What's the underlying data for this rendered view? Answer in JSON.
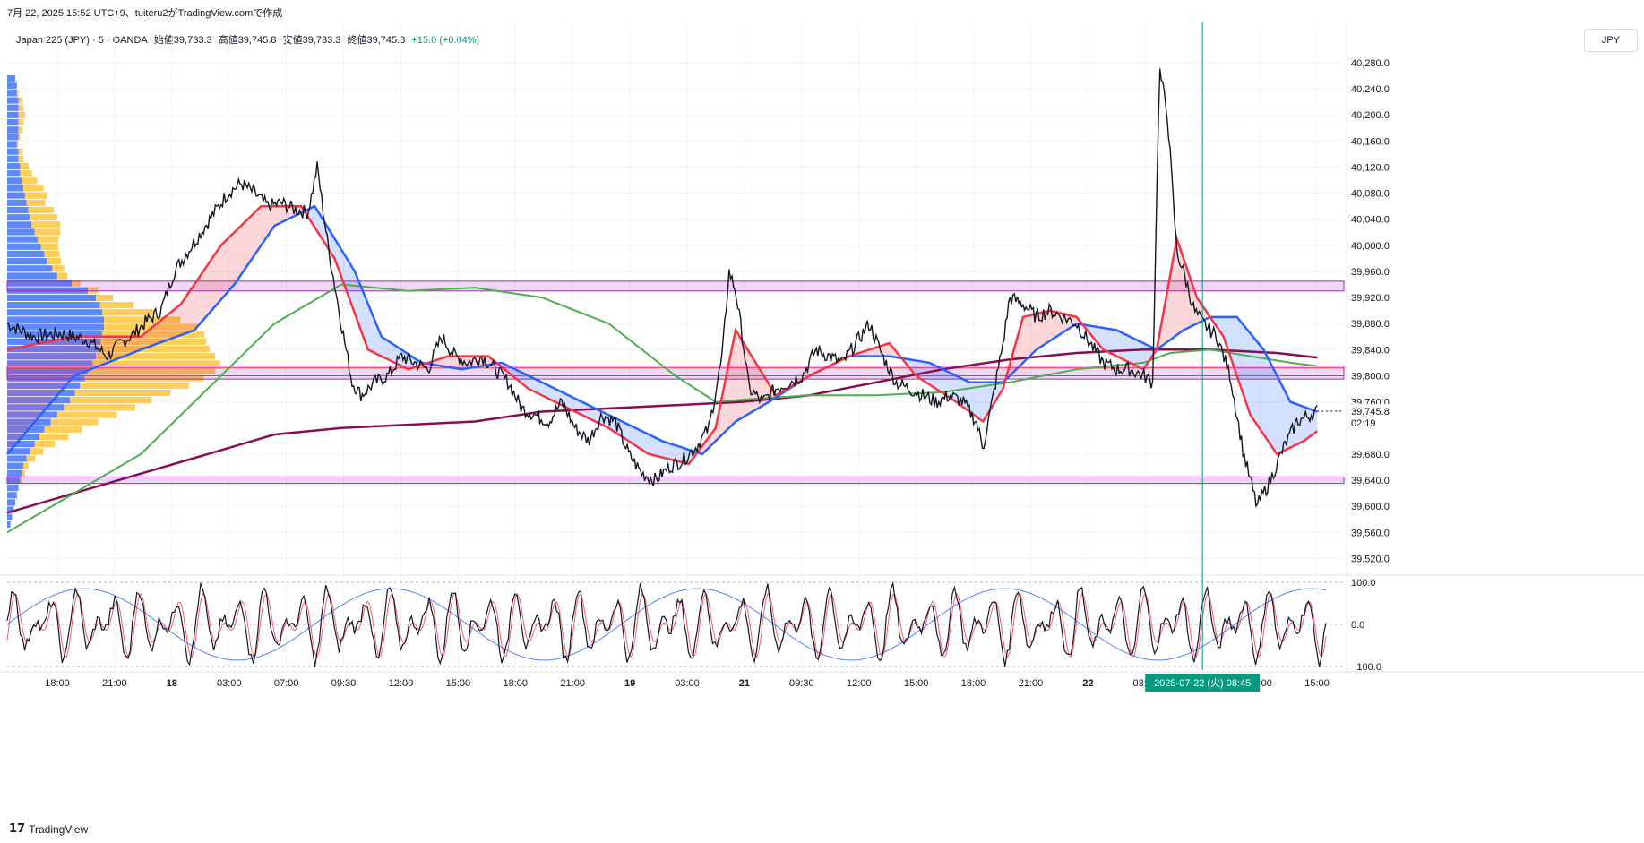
{
  "top_caption": "7月 22, 2025 15:52 UTC+9、tuiteru2がTradingView.comで作成",
  "legend": {
    "symbol": "Japan 225 (JPY) · 5 · OANDA",
    "open": "始値39,733.3",
    "high": "高値39,745.8",
    "low": "安値39,733.3",
    "close": "終値39,745.8",
    "change": "+15.0 (+0.04%)"
  },
  "currency": "JPY",
  "brand": "TradingView",
  "colors": {
    "price": "#131722",
    "ema_fast": "#f23645",
    "ema_mid": "#2962ff",
    "sma_slow": "#4caf50",
    "sma_long": "#880e4f",
    "zone": "#9c27b0",
    "level_red": "#f23645",
    "crosshair": "#089981",
    "vp_up": "#2962ff",
    "vp_down": "#ffb300",
    "osc_k": "#131722",
    "osc_d": "#f23645",
    "osc_slow": "#2962ff"
  },
  "chart_data": [
    {
      "type": "line",
      "series_name": "Japan 225 (JPY) 5m",
      "x": [
        "18:00",
        "21:00",
        "18",
        "03:00",
        "07:00",
        "09:30",
        "12:00",
        "15:00",
        "18:00",
        "21:00",
        "19",
        "03:00",
        "21",
        "09:30",
        "12:00",
        "15:00",
        "18:00",
        "21:00",
        "22",
        "03:00",
        "08:45",
        "12:00",
        "15:00"
      ],
      "ylim": [
        39500,
        40310
      ],
      "y_ticks": [
        "40,280.0",
        "40,240.0",
        "40,200.0",
        "40,160.0",
        "40,120.0",
        "40,080.0",
        "40,040.0",
        "40,000.0",
        "39,960.0",
        "39,920.0",
        "39,880.0",
        "39,840.0",
        "39,800.0",
        "39,760.0",
        "39,680.0",
        "39,640.0",
        "39,600.0",
        "39,560.0",
        "39,520.0"
      ],
      "last_price": "39,745.8",
      "countdown": "02:19",
      "crosshair_label": "2025-07-22 (火)  08:45",
      "price_path": [
        [
          0,
          39880
        ],
        [
          0.01,
          39870
        ],
        [
          0.02,
          39860
        ],
        [
          0.04,
          39865
        ],
        [
          0.06,
          39855
        ],
        [
          0.075,
          39830
        ],
        [
          0.085,
          39850
        ],
        [
          0.095,
          39865
        ],
        [
          0.105,
          39885
        ],
        [
          0.115,
          39900
        ],
        [
          0.125,
          39960
        ],
        [
          0.135,
          39990
        ],
        [
          0.145,
          40020
        ],
        [
          0.155,
          40050
        ],
        [
          0.165,
          40080
        ],
        [
          0.175,
          40095
        ],
        [
          0.185,
          40080
        ],
        [
          0.195,
          40060
        ],
        [
          0.205,
          40065
        ],
        [
          0.215,
          40055
        ],
        [
          0.225,
          40050
        ],
        [
          0.232,
          40120
        ],
        [
          0.24,
          40000
        ],
        [
          0.25,
          39880
        ],
        [
          0.258,
          39790
        ],
        [
          0.265,
          39770
        ],
        [
          0.275,
          39790
        ],
        [
          0.285,
          39800
        ],
        [
          0.295,
          39830
        ],
        [
          0.305,
          39820
        ],
        [
          0.315,
          39810
        ],
        [
          0.325,
          39860
        ],
        [
          0.335,
          39830
        ],
        [
          0.345,
          39820
        ],
        [
          0.355,
          39830
        ],
        [
          0.365,
          39810
        ],
        [
          0.375,
          39790
        ],
        [
          0.385,
          39750
        ],
        [
          0.395,
          39740
        ],
        [
          0.405,
          39730
        ],
        [
          0.415,
          39760
        ],
        [
          0.425,
          39720
        ],
        [
          0.435,
          39700
        ],
        [
          0.445,
          39740
        ],
        [
          0.455,
          39730
        ],
        [
          0.465,
          39680
        ],
        [
          0.475,
          39650
        ],
        [
          0.485,
          39640
        ],
        [
          0.495,
          39660
        ],
        [
          0.505,
          39670
        ],
        [
          0.515,
          39690
        ],
        [
          0.525,
          39720
        ],
        [
          0.535,
          39830
        ],
        [
          0.54,
          39960
        ],
        [
          0.545,
          39930
        ],
        [
          0.55,
          39860
        ],
        [
          0.555,
          39780
        ],
        [
          0.565,
          39760
        ],
        [
          0.575,
          39780
        ],
        [
          0.585,
          39790
        ],
        [
          0.595,
          39800
        ],
        [
          0.605,
          39840
        ],
        [
          0.615,
          39830
        ],
        [
          0.625,
          39820
        ],
        [
          0.635,
          39850
        ],
        [
          0.645,
          39880
        ],
        [
          0.655,
          39830
        ],
        [
          0.665,
          39790
        ],
        [
          0.675,
          39780
        ],
        [
          0.685,
          39770
        ],
        [
          0.695,
          39760
        ],
        [
          0.705,
          39770
        ],
        [
          0.715,
          39760
        ],
        [
          0.725,
          39730
        ],
        [
          0.73,
          39690
        ],
        [
          0.735,
          39740
        ],
        [
          0.745,
          39850
        ],
        [
          0.75,
          39920
        ],
        [
          0.76,
          39910
        ],
        [
          0.77,
          39890
        ],
        [
          0.78,
          39900
        ],
        [
          0.79,
          39890
        ],
        [
          0.8,
          39880
        ],
        [
          0.81,
          39850
        ],
        [
          0.82,
          39820
        ],
        [
          0.83,
          39810
        ],
        [
          0.84,
          39810
        ],
        [
          0.85,
          39800
        ],
        [
          0.857,
          39790
        ],
        [
          0.862,
          40270
        ],
        [
          0.868,
          40200
        ],
        [
          0.875,
          39990
        ],
        [
          0.88,
          39960
        ],
        [
          0.888,
          39900
        ],
        [
          0.895,
          39880
        ],
        [
          0.905,
          39860
        ],
        [
          0.915,
          39800
        ],
        [
          0.925,
          39680
        ],
        [
          0.935,
          39600
        ],
        [
          0.945,
          39640
        ],
        [
          0.955,
          39690
        ],
        [
          0.965,
          39730
        ],
        [
          0.975,
          39740
        ],
        [
          0.98,
          39745.8
        ]
      ],
      "ema_fast_path": [
        [
          0,
          39840
        ],
        [
          0.05,
          39860
        ],
        [
          0.1,
          39860
        ],
        [
          0.13,
          39910
        ],
        [
          0.16,
          40000
        ],
        [
          0.19,
          40060
        ],
        [
          0.22,
          40060
        ],
        [
          0.245,
          39980
        ],
        [
          0.27,
          39840
        ],
        [
          0.3,
          39810
        ],
        [
          0.33,
          39830
        ],
        [
          0.36,
          39830
        ],
        [
          0.39,
          39780
        ],
        [
          0.42,
          39750
        ],
        [
          0.45,
          39720
        ],
        [
          0.48,
          39680
        ],
        [
          0.51,
          39665
        ],
        [
          0.53,
          39720
        ],
        [
          0.545,
          39870
        ],
        [
          0.56,
          39820
        ],
        [
          0.575,
          39770
        ],
        [
          0.6,
          39800
        ],
        [
          0.63,
          39830
        ],
        [
          0.66,
          39850
        ],
        [
          0.68,
          39800
        ],
        [
          0.71,
          39760
        ],
        [
          0.73,
          39730
        ],
        [
          0.745,
          39780
        ],
        [
          0.76,
          39890
        ],
        [
          0.78,
          39900
        ],
        [
          0.8,
          39890
        ],
        [
          0.82,
          39840
        ],
        [
          0.85,
          39810
        ],
        [
          0.86,
          39840
        ],
        [
          0.875,
          40010
        ],
        [
          0.89,
          39920
        ],
        [
          0.91,
          39860
        ],
        [
          0.93,
          39740
        ],
        [
          0.95,
          39680
        ],
        [
          0.97,
          39700
        ],
        [
          0.98,
          39715
        ]
      ],
      "ema_mid_path": [
        [
          0,
          39680
        ],
        [
          0.05,
          39800
        ],
        [
          0.1,
          39840
        ],
        [
          0.14,
          39870
        ],
        [
          0.17,
          39940
        ],
        [
          0.2,
          40030
        ],
        [
          0.23,
          40060
        ],
        [
          0.26,
          39960
        ],
        [
          0.28,
          39860
        ],
        [
          0.31,
          39820
        ],
        [
          0.34,
          39810
        ],
        [
          0.37,
          39820
        ],
        [
          0.4,
          39790
        ],
        [
          0.43,
          39760
        ],
        [
          0.46,
          39730
        ],
        [
          0.49,
          39700
        ],
        [
          0.52,
          39680
        ],
        [
          0.545,
          39730
        ],
        [
          0.57,
          39760
        ],
        [
          0.6,
          39800
        ],
        [
          0.63,
          39830
        ],
        [
          0.66,
          39830
        ],
        [
          0.69,
          39820
        ],
        [
          0.72,
          39790
        ],
        [
          0.745,
          39790
        ],
        [
          0.77,
          39840
        ],
        [
          0.8,
          39880
        ],
        [
          0.83,
          39870
        ],
        [
          0.86,
          39840
        ],
        [
          0.88,
          39870
        ],
        [
          0.9,
          39890
        ],
        [
          0.92,
          39890
        ],
        [
          0.94,
          39840
        ],
        [
          0.96,
          39760
        ],
        [
          0.98,
          39745
        ]
      ],
      "sma_slow_path": [
        [
          0,
          39560
        ],
        [
          0.05,
          39620
        ],
        [
          0.1,
          39680
        ],
        [
          0.15,
          39780
        ],
        [
          0.2,
          39880
        ],
        [
          0.25,
          39940
        ],
        [
          0.3,
          39930
        ],
        [
          0.35,
          39935
        ],
        [
          0.4,
          39920
        ],
        [
          0.45,
          39880
        ],
        [
          0.5,
          39800
        ],
        [
          0.53,
          39760
        ],
        [
          0.56,
          39765
        ],
        [
          0.6,
          39770
        ],
        [
          0.65,
          39770
        ],
        [
          0.7,
          39775
        ],
        [
          0.75,
          39790
        ],
        [
          0.8,
          39810
        ],
        [
          0.85,
          39820
        ],
        [
          0.87,
          39835
        ],
        [
          0.9,
          39840
        ],
        [
          0.93,
          39830
        ],
        [
          0.96,
          39820
        ],
        [
          0.98,
          39815
        ]
      ],
      "sma_long_path": [
        [
          0,
          39590
        ],
        [
          0.05,
          39620
        ],
        [
          0.1,
          39650
        ],
        [
          0.15,
          39680
        ],
        [
          0.2,
          39710
        ],
        [
          0.25,
          39720
        ],
        [
          0.3,
          39725
        ],
        [
          0.35,
          39730
        ],
        [
          0.4,
          39745
        ],
        [
          0.45,
          39750
        ],
        [
          0.5,
          39755
        ],
        [
          0.55,
          39760
        ],
        [
          0.6,
          39770
        ],
        [
          0.65,
          39790
        ],
        [
          0.7,
          39810
        ],
        [
          0.75,
          39825
        ],
        [
          0.8,
          39835
        ],
        [
          0.85,
          39840
        ],
        [
          0.9,
          39840
        ],
        [
          0.95,
          39835
        ],
        [
          0.98,
          39828
        ]
      ],
      "zones": [
        [
          39930,
          39945
        ],
        [
          39795,
          39815
        ],
        [
          39635,
          39645
        ]
      ],
      "red_levels": [
        39800,
        39812
      ],
      "volume_profile": {
        "up": [
          10,
          12,
          12,
          14,
          14,
          14,
          14,
          14,
          14,
          12,
          14,
          14,
          16,
          16,
          18,
          20,
          22,
          24,
          26,
          28,
          30,
          34,
          38,
          42,
          46,
          50,
          56,
          62,
          80,
          100,
          110,
          115,
          118,
          120,
          120,
          118,
          116,
          114,
          110,
          106,
          100,
          96,
          90,
          84,
          78,
          70,
          62,
          54,
          46,
          40,
          34,
          28,
          24,
          20,
          18,
          16,
          14,
          12,
          10,
          8,
          6,
          4
        ],
        "down": [
          0,
          0,
          2,
          4,
          6,
          8,
          6,
          4,
          2,
          2,
          4,
          6,
          10,
          14,
          18,
          24,
          26,
          22,
          30,
          32,
          34,
          30,
          24,
          20,
          18,
          16,
          14,
          12,
          10,
          12,
          20,
          40,
          60,
          90,
          110,
          120,
          124,
          130,
          140,
          150,
          150,
          140,
          128,
          112,
          96,
          84,
          70,
          56,
          44,
          34,
          24,
          16,
          10,
          6,
          4,
          2,
          0,
          0,
          0,
          0,
          0,
          0
        ]
      },
      "oscillator": {
        "ylim": [
          -100,
          100
        ],
        "y_ticks": [
          "100.0",
          "0.0",
          "−100.0"
        ]
      }
    }
  ]
}
